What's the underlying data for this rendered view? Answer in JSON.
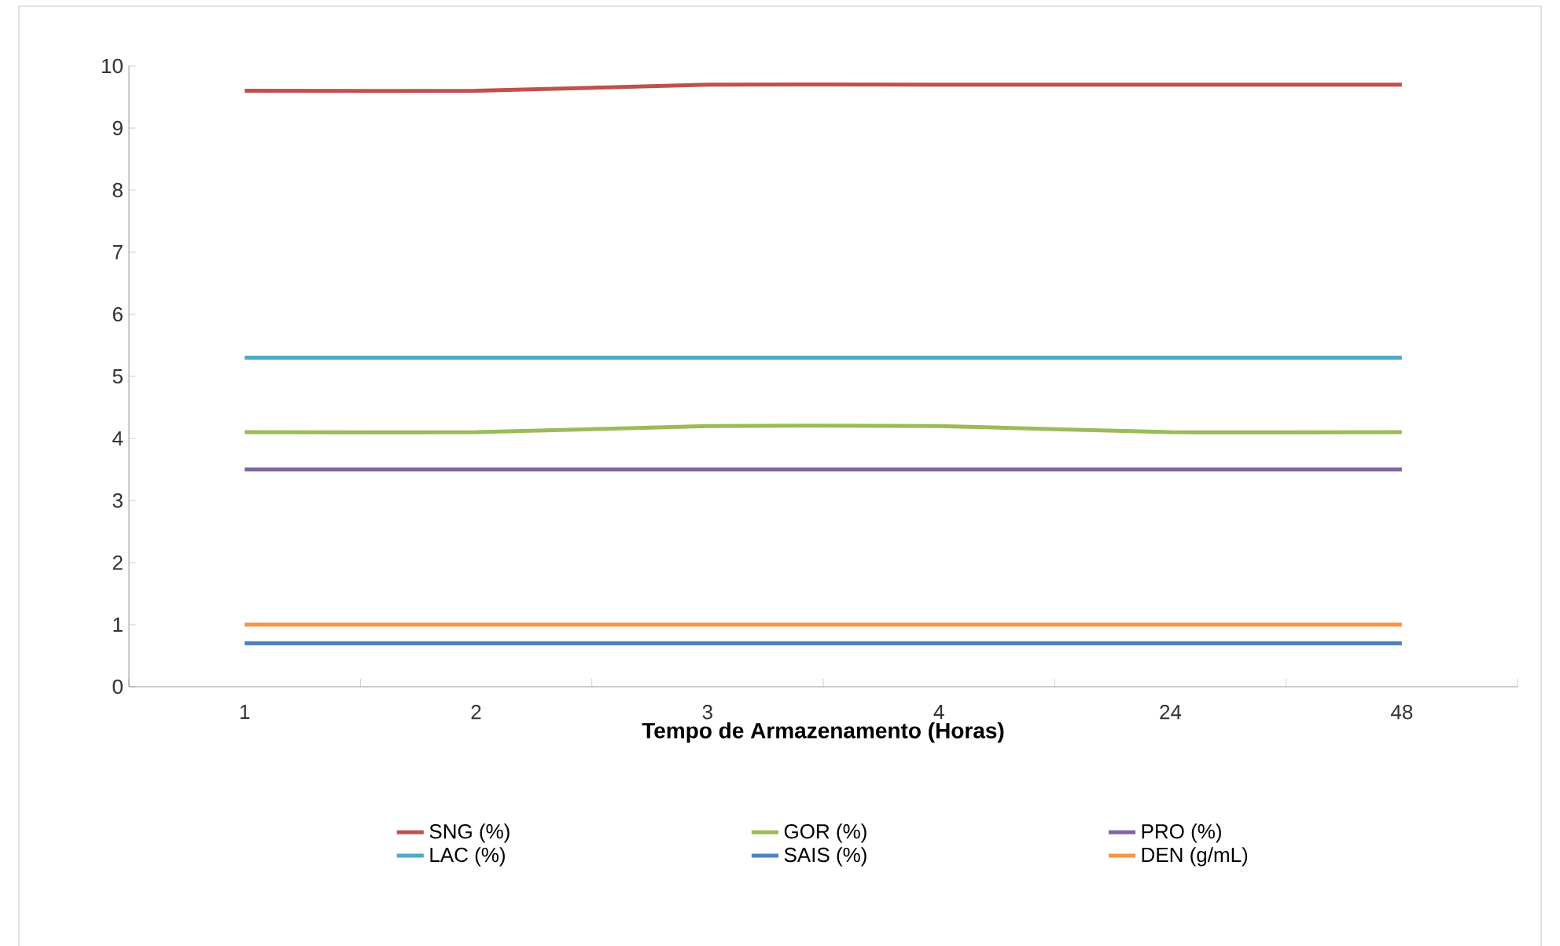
{
  "chart_data": {
    "type": "line",
    "xlabel": "Tempo de Armazenamento (Horas)",
    "categories": [
      "1",
      "2",
      "3",
      "4",
      "24",
      "48"
    ],
    "ylim": [
      0,
      10
    ],
    "yticks": [
      0,
      1,
      2,
      3,
      4,
      5,
      6,
      7,
      8,
      9,
      10
    ],
    "legend": "bottom",
    "line_style": "solid",
    "marker": "none",
    "grid": false,
    "series": [
      {
        "name": "SNG (%)",
        "color": "#c0504d",
        "values": [
          9.6,
          9.6,
          9.7,
          9.7,
          9.7,
          9.7
        ]
      },
      {
        "name": "GOR (%)",
        "color": "#9bbb59",
        "values": [
          4.1,
          4.1,
          4.2,
          4.2,
          4.1,
          4.1
        ]
      },
      {
        "name": "PRO (%)",
        "color": "#8064a2",
        "values": [
          3.5,
          3.5,
          3.5,
          3.5,
          3.5,
          3.5
        ]
      },
      {
        "name": "LAC (%)",
        "color": "#4bacc6",
        "values": [
          5.3,
          5.3,
          5.3,
          5.3,
          5.3,
          5.3
        ]
      },
      {
        "name": "SAIS (%)",
        "color": "#4f81bd",
        "values": [
          0.7,
          0.7,
          0.7,
          0.7,
          0.7,
          0.7
        ]
      },
      {
        "name": "DEN (g/mL)",
        "color": "#f79646",
        "values": [
          1.0,
          1.0,
          1.0,
          1.0,
          1.0,
          1.0
        ]
      }
    ]
  }
}
